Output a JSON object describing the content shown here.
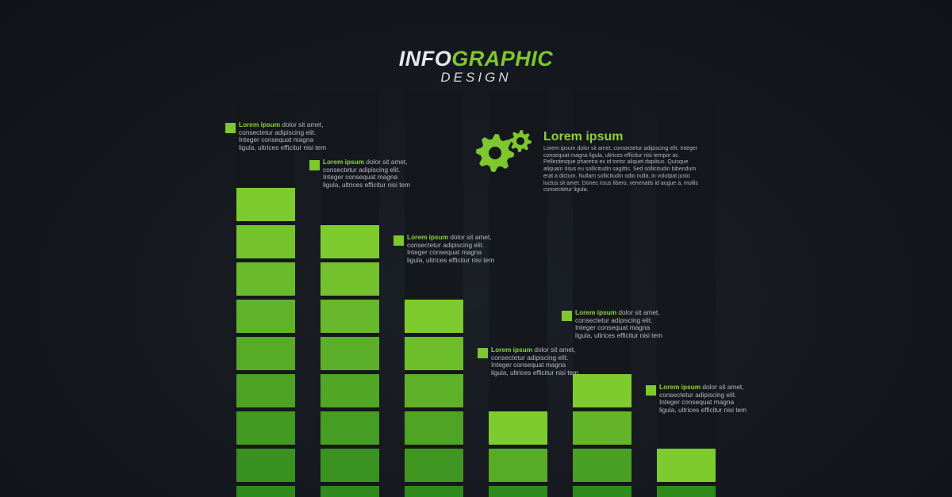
{
  "header": {
    "title_part1": "INFO",
    "title_part2": "GRAPHIC",
    "subtitle": "DESIGN"
  },
  "colors": {
    "accent": "#7fc72f",
    "block_top": "#7ecb2f",
    "block_bottom": "#2f8a1e",
    "column_bg": "#16191f",
    "background": "#15181e"
  },
  "chart_data": {
    "type": "bar",
    "categories": [
      "",
      "",
      "",
      "",
      "",
      ""
    ],
    "values": [
      9,
      8,
      6,
      3,
      4,
      2
    ],
    "ylim": [
      0,
      11
    ],
    "grid": false
  },
  "callouts": [
    {
      "heading": "Lorem ipsum",
      "text_line1": "dolor sit",
      "text_rest": "amet, consectetur adipiscing elit. Integer consequat magna ligula, ultrices efficitur nisi tem"
    },
    {
      "heading": "Lorem ipsum",
      "text_line1": "dolor sit",
      "text_rest": "amet, consectetur adipiscing elit. Integer consequat magna ligula, ultrices efficitur nisi tem"
    },
    {
      "heading": "Lorem ipsum",
      "text_line1": "dolor sit",
      "text_rest": "amet, consectetur adipiscing elit. Integer consequat magna ligula, ultrices efficitur nisi tem"
    },
    {
      "heading": "Lorem ipsum",
      "text_line1": "dolor sit",
      "text_rest": "amet, consectetur adipiscing elit. Integer consequat magna ligula, ultrices efficitur nisi tem"
    },
    {
      "heading": "Lorem ipsum",
      "text_line1": "dolor sit",
      "text_rest": "amet, consectetur adipiscing elit. Integer consequat magna ligula, ultrices efficitur nisi tem"
    },
    {
      "heading": "Lorem ipsum",
      "text_line1": "dolor sit",
      "text_rest": "amet, consectetur adipiscing elit. Integer consequat magna ligula, ultrices efficitur nisi tem"
    }
  ],
  "info_block": {
    "icon": "gears-icon",
    "heading": "Lorem ipsum",
    "body": "Lorem ipsum dolor sit amet, consectetur adipiscing elit. Integer consequat magna ligula, ultrices efficitur nisi tempor ac. Pellentesque pharetra ex id tortor aliquet dapibus. Quisque aliquam risus eu sollicitudin sagittis. Sed sollicitudin bibendum erat a dictum. Nullam sollicitudin odio nulla, in volutpat justo luctus sit amet. Donec risus libero, venenatis id augue a, mollis consectetur ligula."
  }
}
